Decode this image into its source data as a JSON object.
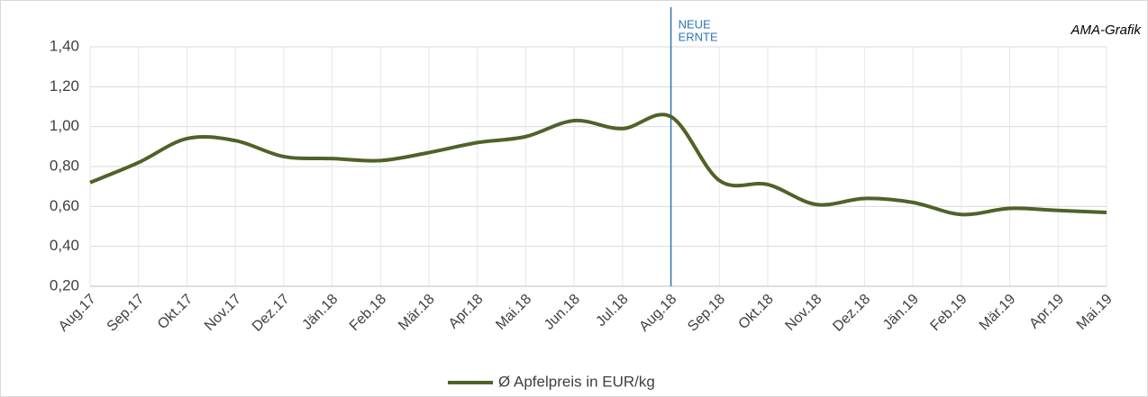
{
  "chart_data": {
    "type": "line",
    "source": "AMA-Grafik",
    "annotation": {
      "lines": [
        "NEUE",
        "ERNTE"
      ],
      "x": "Aug.18",
      "color": "#2e75b6"
    },
    "categories": [
      "Aug.17",
      "Sep.17",
      "Okt.17",
      "Nov.17",
      "Dez.17",
      "Jän.18",
      "Feb.18",
      "Mär.18",
      "Apr.18",
      "Mai.18",
      "Jun.18",
      "Jul.18",
      "Aug.18",
      "Sep.18",
      "Okt.18",
      "Nov.18",
      "Dez.18",
      "Jän.19",
      "Feb.19",
      "Mär.19",
      "Apr.19",
      "Mai.19"
    ],
    "series": [
      {
        "name": "Ø Apfelpreis in EUR/kg",
        "color": "#4f6228",
        "values": [
          0.72,
          0.82,
          0.94,
          0.93,
          0.85,
          0.84,
          0.83,
          0.87,
          0.92,
          0.95,
          1.03,
          0.99,
          1.05,
          0.73,
          0.71,
          0.61,
          0.64,
          0.62,
          0.56,
          0.59,
          0.58,
          0.57
        ]
      }
    ],
    "ylim": [
      0.2,
      1.4
    ],
    "yticks": [
      {
        "value": 0.2,
        "label": "0,20"
      },
      {
        "value": 0.4,
        "label": "0,40"
      },
      {
        "value": 0.6,
        "label": "0,60"
      },
      {
        "value": 0.8,
        "label": "0,80"
      },
      {
        "value": 1.0,
        "label": "1,00"
      },
      {
        "value": 1.2,
        "label": "1,20"
      },
      {
        "value": 1.4,
        "label": "1,40"
      }
    ],
    "grid": true,
    "legend": "bottom"
  }
}
